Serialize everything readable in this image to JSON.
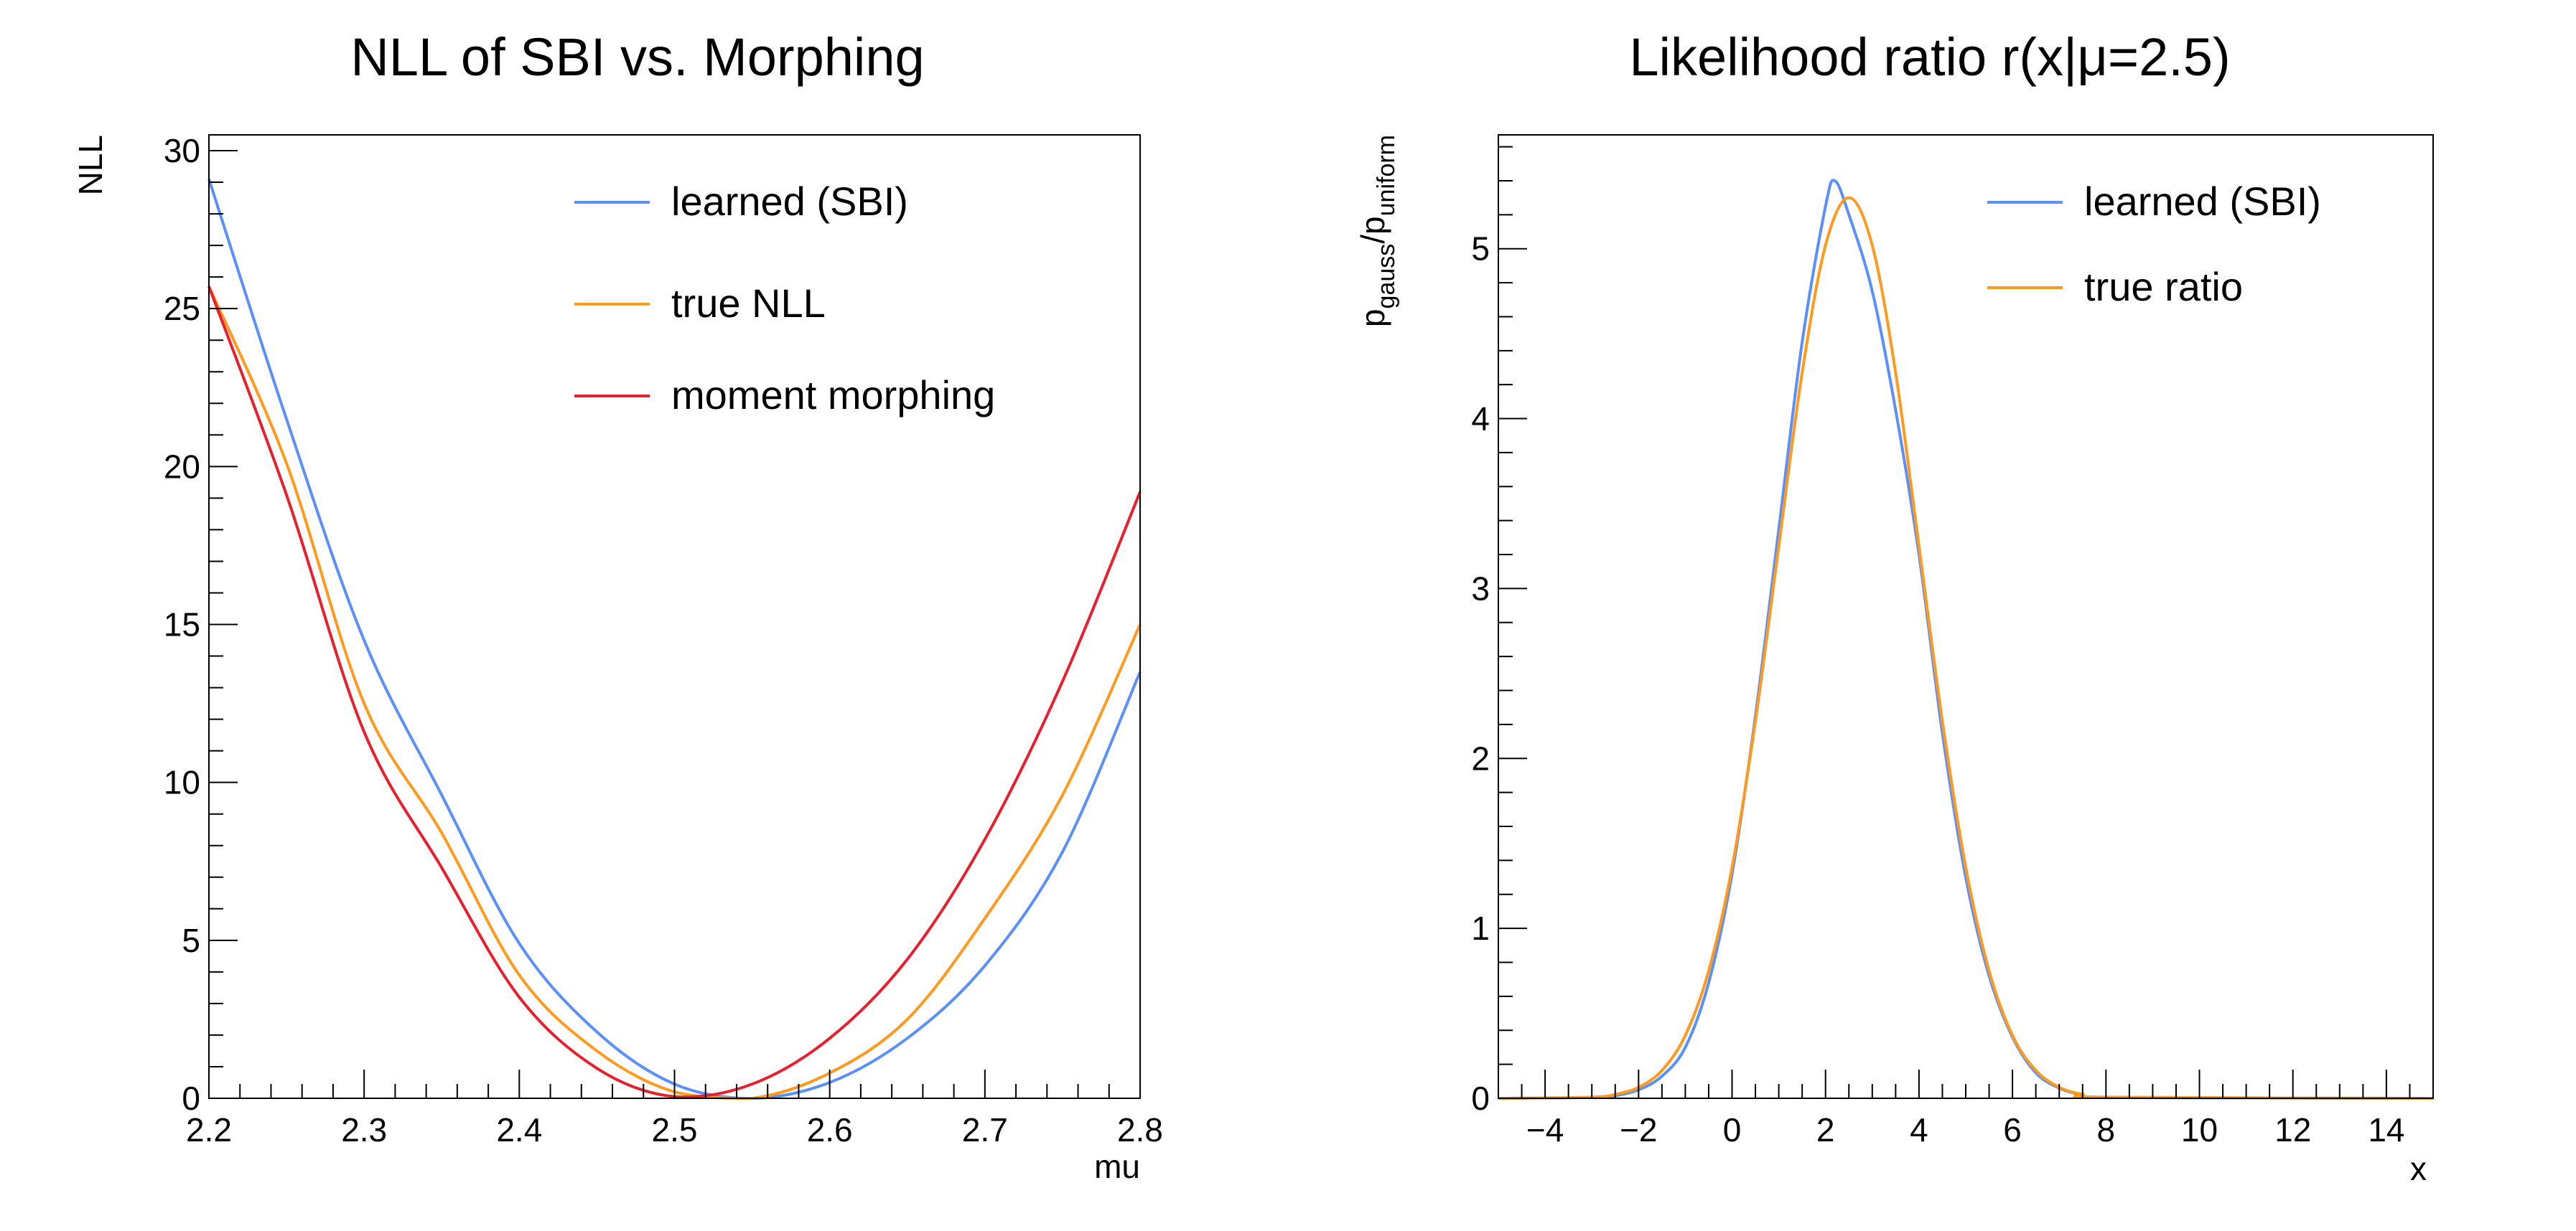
{
  "chart_data": [
    {
      "type": "line",
      "title": "NLL of SBI vs. Morphing",
      "xlabel": "mu",
      "ylabel": "NLL",
      "xlim": [
        2.2,
        2.8
      ],
      "ylim": [
        0,
        30.5
      ],
      "x_ticks": [
        "2.2",
        "2.3",
        "2.4",
        "2.5",
        "2.6",
        "2.7",
        "2.8"
      ],
      "y_ticks": [
        "0",
        "5",
        "10",
        "15",
        "20",
        "25",
        "30"
      ],
      "grid": false,
      "legend_position": "top-right",
      "x": [
        2.2,
        2.25,
        2.3,
        2.35,
        2.4,
        2.45,
        2.5,
        2.55,
        2.6,
        2.65,
        2.7,
        2.75,
        2.8
      ],
      "series": [
        {
          "name": "learned (SBI)",
          "color": "#5b8ff9",
          "values": [
            29.1,
            21.5,
            14.5,
            9.6,
            4.9,
            2.1,
            0.45,
            0.0,
            0.5,
            1.9,
            4.2,
            7.8,
            13.5
          ]
        },
        {
          "name": "true NLL",
          "color": "#ff9a1f",
          "values": [
            25.7,
            20.1,
            12.5,
            8.4,
            3.9,
            1.5,
            0.2,
            0.0,
            0.8,
            2.5,
            5.7,
            9.6,
            15.0
          ]
        },
        {
          "name": "moment morphing",
          "color": "#e8202e",
          "values": [
            25.7,
            19.1,
            11.6,
            7.3,
            3.2,
            0.95,
            0.05,
            0.45,
            1.9,
            4.4,
            8.2,
            13.2,
            19.2
          ]
        }
      ]
    },
    {
      "type": "line",
      "title": "Likelihood ratio r(x|μ=2.5)",
      "xlabel": "x",
      "ylabel": {
        "base": "p",
        "sub1": "gauss",
        "sep": "/p",
        "sub2": "uniform"
      },
      "xlim": [
        -5,
        15
      ],
      "ylim": [
        0,
        5.67
      ],
      "x_ticks": [
        "−4",
        "−2",
        "0",
        "2",
        "4",
        "6",
        "8",
        "10",
        "12",
        "14"
      ],
      "y_ticks": [
        "0",
        "1",
        "2",
        "3",
        "4",
        "5"
      ],
      "grid": false,
      "legend_position": "top-right",
      "series": [
        {
          "name": "learned (SBI)",
          "color": "#5b8ff9",
          "x": [
            -5,
            -3,
            -2.5,
            -2,
            -1.5,
            -1,
            -0.5,
            0,
            0.5,
            1,
            1.5,
            2,
            2.2,
            2.5,
            3,
            3.5,
            4,
            4.5,
            5,
            5.5,
            6,
            6.5,
            7,
            7.5,
            8,
            15
          ],
          "values": [
            0,
            0.005,
            0.015,
            0.05,
            0.13,
            0.3,
            0.68,
            1.32,
            2.25,
            3.35,
            4.45,
            5.25,
            5.4,
            5.2,
            4.75,
            4.05,
            3.2,
            2.15,
            1.3,
            0.72,
            0.36,
            0.15,
            0.06,
            0.02,
            0.005,
            0
          ]
        },
        {
          "name": "true ratio",
          "color": "#ff9a1f",
          "x": [
            -5,
            -3,
            -2.5,
            -2,
            -1.5,
            -1,
            -0.5,
            0,
            0.5,
            1,
            1.5,
            2,
            2.5,
            3,
            3.5,
            4,
            4.5,
            5,
            5.5,
            6,
            6.5,
            7,
            7.5,
            8,
            15
          ],
          "values": [
            0,
            0.007,
            0.023,
            0.065,
            0.164,
            0.37,
            0.75,
            1.36,
            2.22,
            3.25,
            4.27,
            5.02,
            5.3,
            5.02,
            4.27,
            3.25,
            2.22,
            1.36,
            0.75,
            0.37,
            0.164,
            0.065,
            0.023,
            0.007,
            0
          ]
        }
      ]
    }
  ]
}
